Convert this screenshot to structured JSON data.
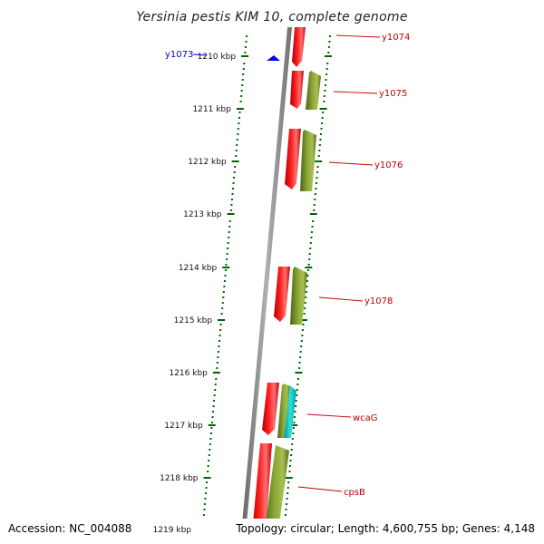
{
  "header": {
    "title": "Yersinia pestis KIM 10, complete genome"
  },
  "footer": {
    "accession": "Accession: NC_004088",
    "summary": "Topology: circular; Length: 4,600,755 bp; Genes: 4,148"
  },
  "colors": {
    "forward_strand": "#ff0000",
    "reverse_strand": "#6b8e23",
    "highlight_gene": "#00c8c8",
    "backbone": "#808080",
    "tick": "#006400",
    "gene_label": "#c00000",
    "marker": "#0000ff"
  },
  "scale_labels": [
    "1210 kbp",
    "1211 kbp",
    "1212 kbp",
    "1213 kbp",
    "1214 kbp",
    "1215 kbp",
    "1216 kbp",
    "1217 kbp",
    "1218 kbp",
    "1219 kbp"
  ],
  "marker_label": "y1073",
  "gene_labels": [
    "y1074",
    "y1075",
    "y1076",
    "y1078",
    "wcaG",
    "cpsB"
  ]
}
